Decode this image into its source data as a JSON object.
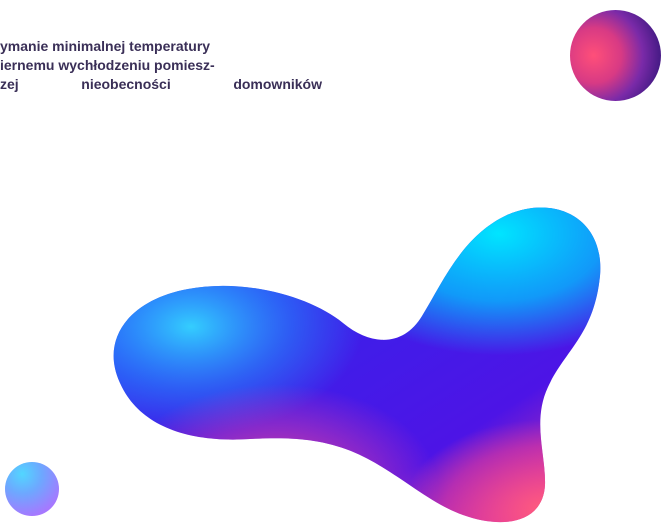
{
  "paragraph": {
    "lines": [
      "ymanie minimalnej temperatury",
      "iernemu wychłodzeniu pomiesz-",
      "zej nieobecności domowników"
    ]
  },
  "colors": {
    "text": "#3a2f57",
    "orb_top_left": "#ff4f79",
    "orb_top_right": "#4a1c88",
    "orb_bottom_top": "#52d6ff",
    "orb_bottom_bottom": "#a678ff",
    "blob_cyan": "#00e5ff",
    "blob_blue": "#2b45ff",
    "blob_violet": "#4d14e6",
    "blob_pink": "#ff3f8d"
  },
  "decorations": {
    "orb_top_icon": "gradient-sphere-icon",
    "orb_bottom_icon": "gradient-sphere-icon",
    "blob_icon": "abstract-fluid-shape-icon"
  }
}
